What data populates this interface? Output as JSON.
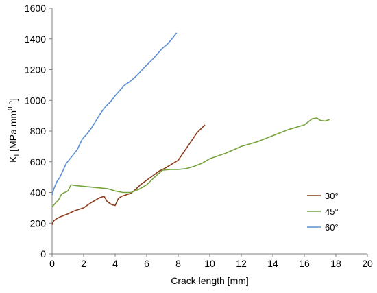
{
  "chart_data": {
    "type": "line",
    "xlabel": "Crack length [mm]",
    "ylabel_main": "K",
    "ylabel_sub": "I",
    "ylabel_unit": " [MPa.mm",
    "ylabel_sup": "0.5",
    "ylabel_close": "]",
    "xlim": [
      0,
      20
    ],
    "ylim": [
      0,
      1600
    ],
    "xticks": [
      0,
      2,
      4,
      6,
      8,
      10,
      12,
      14,
      16,
      18,
      20
    ],
    "yticks": [
      0,
      200,
      400,
      600,
      800,
      1000,
      1200,
      1400,
      1600
    ],
    "grid": false,
    "legend_position": "right",
    "series": [
      {
        "name": "30°",
        "color": "#8B3A1C",
        "x": [
          0.0,
          0.1,
          0.3,
          0.6,
          1.0,
          1.4,
          2.0,
          2.5,
          3.0,
          3.3,
          3.5,
          3.8,
          4.0,
          4.2,
          4.4,
          4.7,
          5.0,
          5.3,
          5.6,
          6.0,
          6.4,
          6.8,
          7.2,
          7.6,
          8.0,
          8.4,
          8.8,
          9.2,
          9.7
        ],
        "y": [
          190,
          215,
          230,
          245,
          260,
          280,
          300,
          335,
          365,
          375,
          340,
          320,
          315,
          360,
          375,
          385,
          395,
          420,
          450,
          480,
          510,
          540,
          560,
          585,
          610,
          670,
          730,
          790,
          840
        ]
      },
      {
        "name": "45°",
        "color": "#76A33B",
        "x": [
          0.0,
          0.2,
          0.4,
          0.6,
          0.8,
          1.0,
          1.2,
          1.5,
          2.0,
          2.5,
          3.0,
          3.5,
          4.0,
          4.5,
          5.0,
          5.5,
          6.0,
          6.5,
          7.0,
          7.5,
          8.0,
          8.5,
          9.0,
          9.5,
          10.0,
          11.0,
          12.0,
          13.0,
          14.0,
          15.0,
          16.0,
          16.5,
          16.8,
          17.0,
          17.3,
          17.6
        ],
        "y": [
          305,
          330,
          350,
          390,
          400,
          410,
          450,
          445,
          440,
          435,
          430,
          425,
          410,
          400,
          400,
          420,
          450,
          500,
          545,
          550,
          550,
          555,
          570,
          590,
          620,
          655,
          700,
          730,
          770,
          810,
          840,
          880,
          885,
          870,
          865,
          875
        ]
      },
      {
        "name": "60°",
        "color": "#5B8FD1",
        "x": [
          0.0,
          0.1,
          0.3,
          0.5,
          0.7,
          0.9,
          1.1,
          1.3,
          1.6,
          1.9,
          2.2,
          2.5,
          2.8,
          3.1,
          3.4,
          3.7,
          4.0,
          4.3,
          4.6,
          4.9,
          5.2,
          5.5,
          5.8,
          6.1,
          6.4,
          6.7,
          7.0,
          7.3,
          7.6,
          7.9
        ],
        "y": [
          385,
          420,
          470,
          500,
          545,
          590,
          615,
          640,
          680,
          745,
          780,
          820,
          870,
          920,
          960,
          990,
          1030,
          1065,
          1100,
          1120,
          1145,
          1175,
          1210,
          1240,
          1270,
          1305,
          1340,
          1365,
          1400,
          1440
        ]
      }
    ]
  }
}
